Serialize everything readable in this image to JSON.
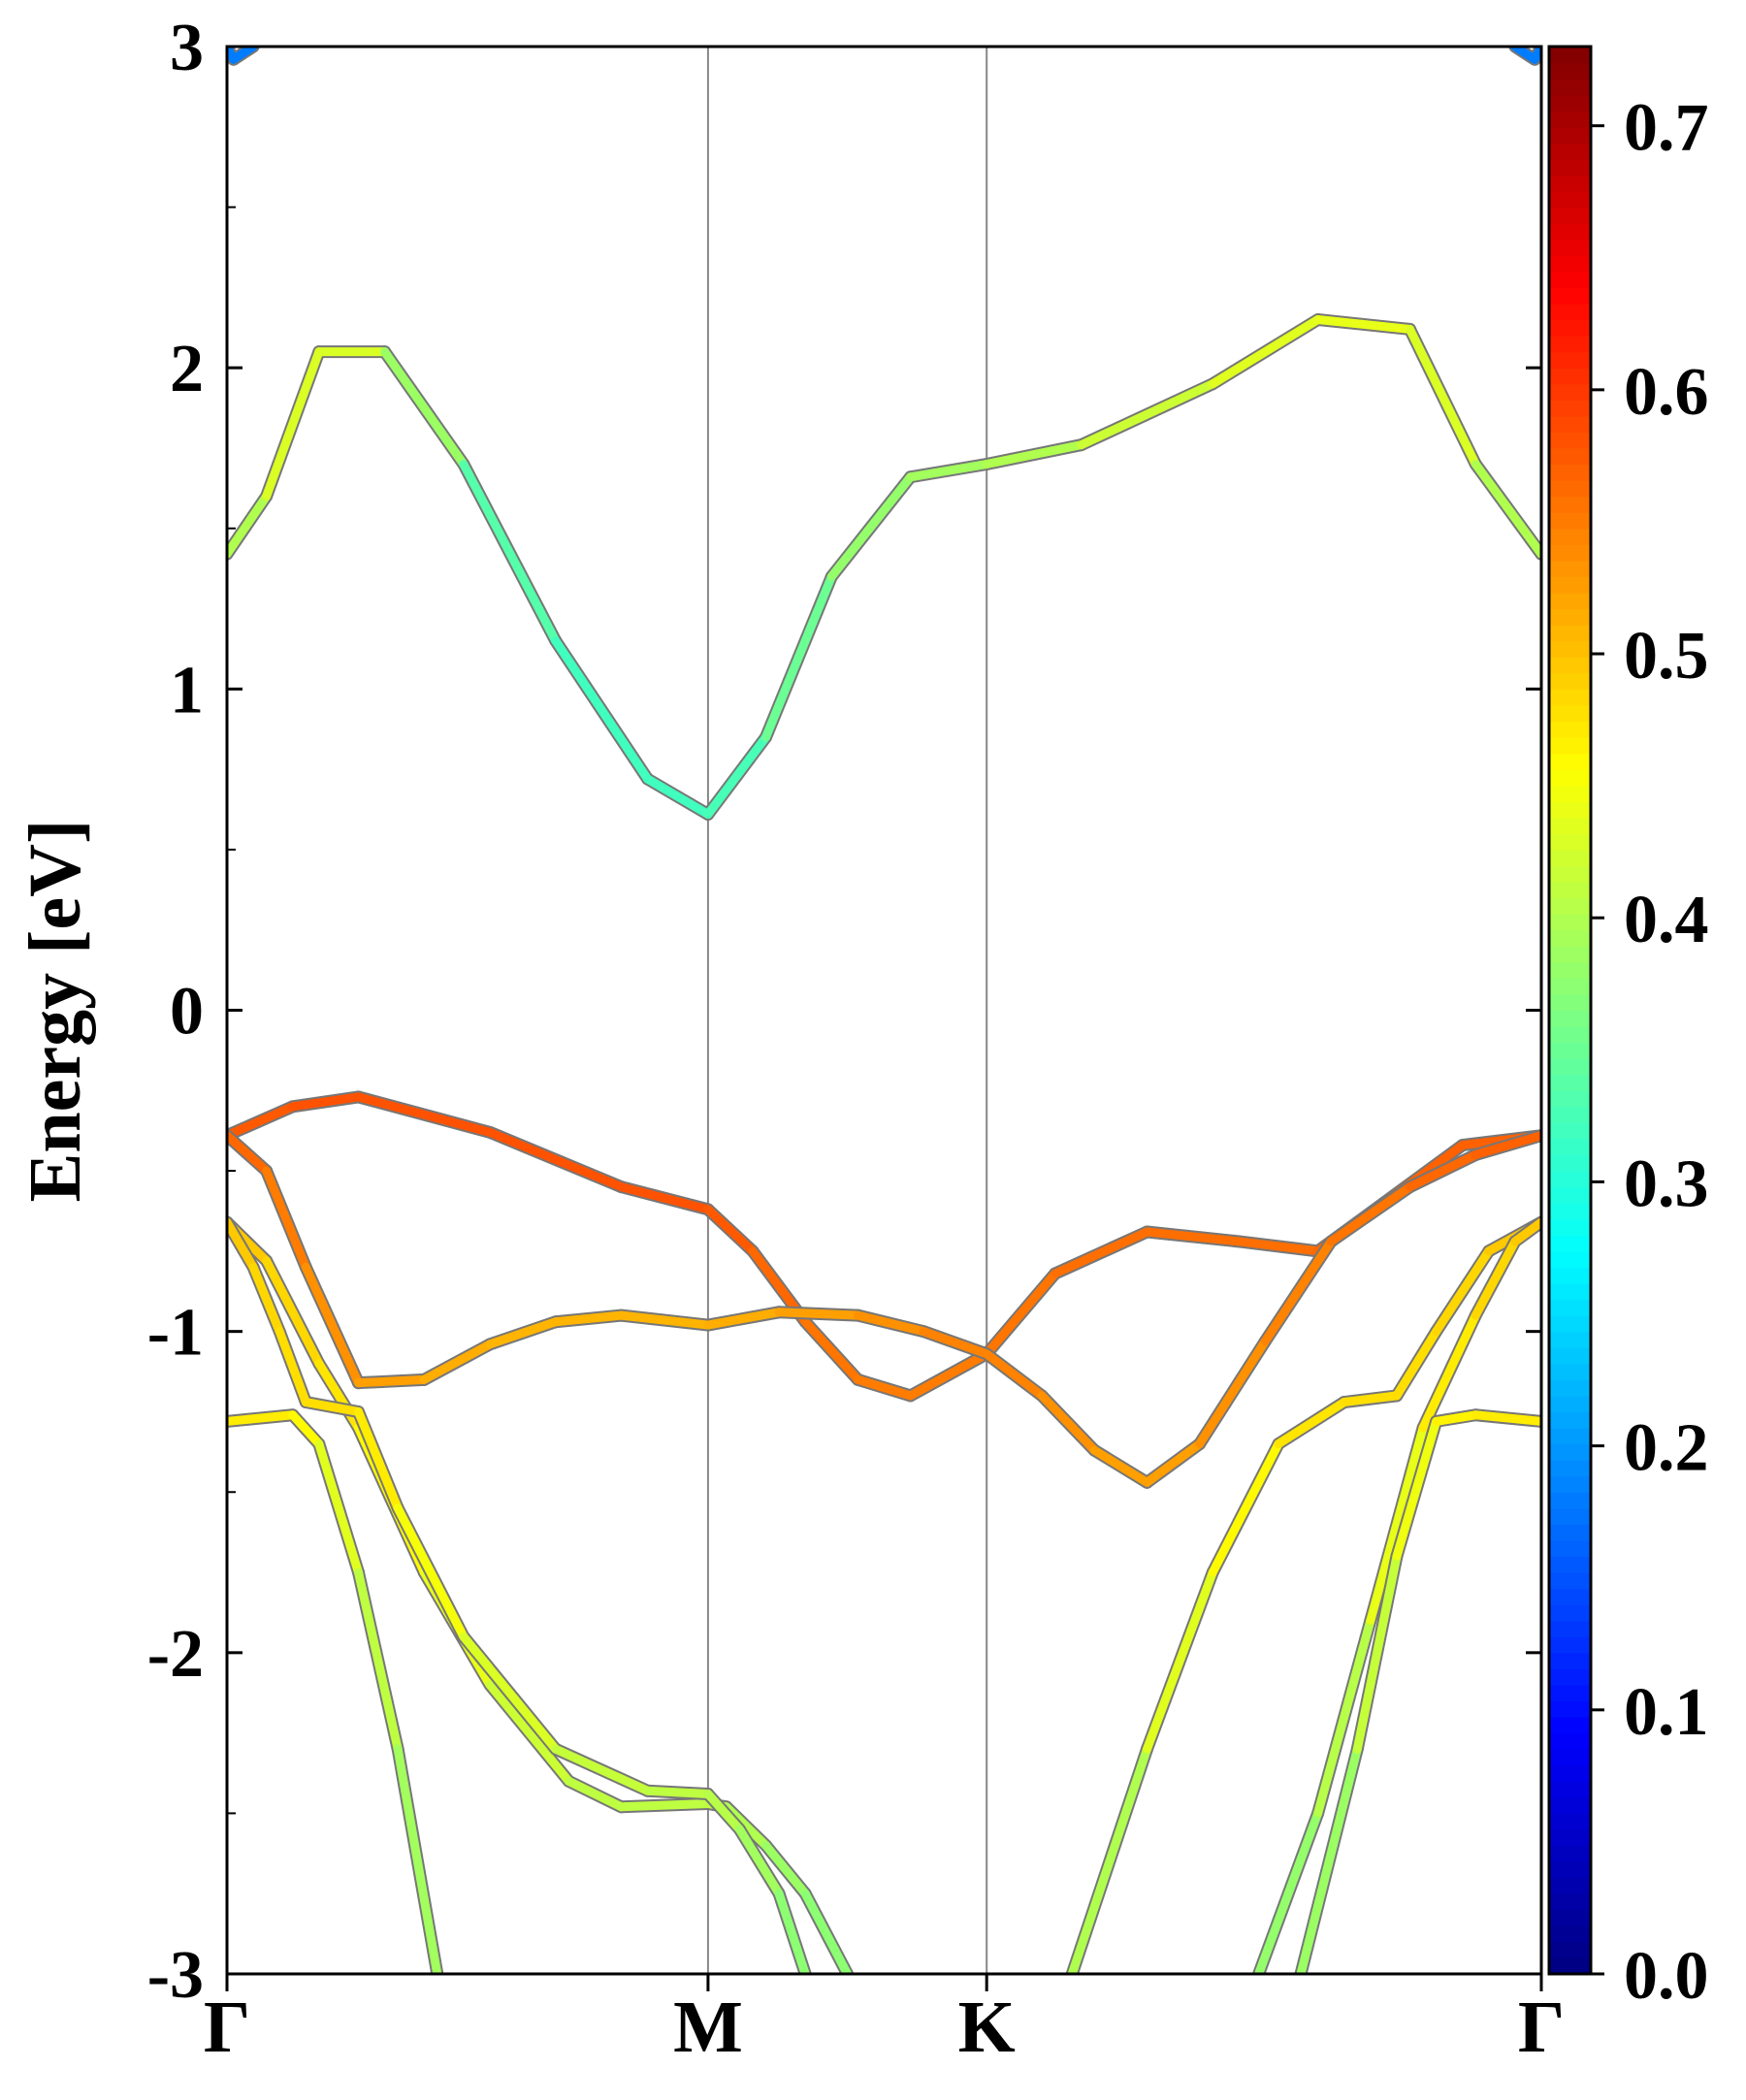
{
  "chart_data": {
    "type": "line",
    "ylabel": "Energy [eV]",
    "xlabel": "",
    "ylim": [
      -3,
      3
    ],
    "xlim": [
      0,
      1
    ],
    "x_ticks": [
      {
        "label": "Γ",
        "x": 0.0
      },
      {
        "label": "M",
        "x": 0.366
      },
      {
        "label": "K",
        "x": 0.578
      },
      {
        "label": "Γ",
        "x": 1.0
      }
    ],
    "y_ticks": [
      "3",
      "2",
      "1",
      "0",
      "-1",
      "-2",
      "-3"
    ],
    "y_tick_values": [
      3,
      2,
      1,
      0,
      -1,
      -2,
      -3
    ],
    "colorbar": {
      "range": [
        0.0,
        0.73
      ],
      "tick_labels": [
        "0.0",
        "0.1",
        "0.2",
        "0.3",
        "0.4",
        "0.5",
        "0.6",
        "0.7"
      ],
      "tick_values": [
        0.0,
        0.1,
        0.2,
        0.3,
        0.4,
        0.5,
        0.6,
        0.7
      ],
      "colormap": "jet"
    },
    "grid": false,
    "series": [
      {
        "values": [
          [
            0.0,
            1.42,
            0.38
          ],
          [
            0.03,
            1.6,
            0.42
          ],
          [
            0.07,
            2.05,
            0.44
          ],
          [
            0.12,
            2.05,
            0.42
          ],
          [
            0.18,
            1.7,
            0.35
          ],
          [
            0.25,
            1.15,
            0.32
          ],
          [
            0.32,
            0.72,
            0.32
          ],
          [
            0.366,
            0.61,
            0.32
          ],
          [
            0.41,
            0.85,
            0.33
          ],
          [
            0.46,
            1.35,
            0.37
          ],
          [
            0.52,
            1.66,
            0.39
          ],
          [
            0.578,
            1.7,
            0.39
          ],
          [
            0.65,
            1.76,
            0.41
          ],
          [
            0.75,
            1.95,
            0.43
          ],
          [
            0.83,
            2.15,
            0.44
          ],
          [
            0.9,
            2.12,
            0.44
          ],
          [
            0.95,
            1.7,
            0.42
          ],
          [
            1.0,
            1.42,
            0.38
          ]
        ]
      },
      {
        "values": [
          [
            0.0,
            -0.39,
            0.57
          ],
          [
            0.05,
            -0.3,
            0.58
          ],
          [
            0.1,
            -0.27,
            0.58
          ],
          [
            0.2,
            -0.38,
            0.58
          ],
          [
            0.3,
            -0.55,
            0.58
          ],
          [
            0.366,
            -0.62,
            0.58
          ],
          [
            0.4,
            -0.75,
            0.57
          ],
          [
            0.44,
            -0.97,
            0.56
          ],
          [
            0.48,
            -1.15,
            0.55
          ],
          [
            0.52,
            -1.2,
            0.55
          ],
          [
            0.578,
            -1.07,
            0.55
          ],
          [
            0.63,
            -0.82,
            0.56
          ],
          [
            0.7,
            -0.69,
            0.56
          ],
          [
            0.77,
            -0.72,
            0.56
          ],
          [
            0.83,
            -0.75,
            0.56
          ],
          [
            0.88,
            -0.6,
            0.57
          ],
          [
            0.94,
            -0.42,
            0.57
          ],
          [
            1.0,
            -0.39,
            0.57
          ]
        ]
      },
      {
        "values": [
          [
            0.0,
            -0.39,
            0.57
          ],
          [
            0.03,
            -0.5,
            0.56
          ],
          [
            0.06,
            -0.8,
            0.54
          ],
          [
            0.1,
            -1.16,
            0.53
          ],
          [
            0.15,
            -1.15,
            0.52
          ],
          [
            0.2,
            -1.04,
            0.51
          ],
          [
            0.25,
            -0.97,
            0.51
          ],
          [
            0.3,
            -0.95,
            0.51
          ],
          [
            0.366,
            -0.98,
            0.51
          ],
          [
            0.42,
            -0.94,
            0.52
          ],
          [
            0.48,
            -0.95,
            0.53
          ],
          [
            0.53,
            -1.0,
            0.54
          ],
          [
            0.578,
            -1.07,
            0.55
          ],
          [
            0.62,
            -1.2,
            0.54
          ],
          [
            0.66,
            -1.37,
            0.53
          ],
          [
            0.7,
            -1.47,
            0.52
          ],
          [
            0.74,
            -1.35,
            0.53
          ],
          [
            0.79,
            -1.03,
            0.54
          ],
          [
            0.84,
            -0.72,
            0.55
          ],
          [
            0.9,
            -0.55,
            0.56
          ],
          [
            0.95,
            -0.45,
            0.57
          ],
          [
            1.0,
            -0.39,
            0.57
          ]
        ]
      },
      {
        "values": [
          [
            0.0,
            -0.66,
            0.5
          ],
          [
            0.03,
            -0.78,
            0.49
          ],
          [
            0.07,
            -1.1,
            0.48
          ],
          [
            0.1,
            -1.3,
            0.47
          ],
          [
            0.15,
            -1.75,
            0.45
          ],
          [
            0.2,
            -2.1,
            0.43
          ],
          [
            0.26,
            -2.4,
            0.41
          ],
          [
            0.3,
            -2.48,
            0.41
          ],
          [
            0.366,
            -2.47,
            0.41
          ],
          [
            0.38,
            -2.48,
            0.41
          ],
          [
            0.41,
            -2.6,
            0.39
          ],
          [
            0.44,
            -2.75,
            0.38
          ],
          [
            0.472,
            -3.0,
            0.37
          ]
        ]
      },
      {
        "values": [
          [
            0.0,
            -0.66,
            0.5
          ],
          [
            0.02,
            -0.8,
            0.49
          ],
          [
            0.04,
            -1.0,
            0.48
          ],
          [
            0.06,
            -1.22,
            0.48
          ],
          [
            0.1,
            -1.25,
            0.48
          ],
          [
            0.13,
            -1.55,
            0.46
          ],
          [
            0.18,
            -1.95,
            0.44
          ],
          [
            0.25,
            -2.3,
            0.42
          ],
          [
            0.32,
            -2.43,
            0.41
          ],
          [
            0.366,
            -2.44,
            0.41
          ],
          [
            0.39,
            -2.55,
            0.4
          ],
          [
            0.42,
            -2.75,
            0.38
          ],
          [
            0.44,
            -3.0,
            0.37
          ]
        ]
      },
      {
        "values": [
          [
            0.0,
            -1.28,
            0.47
          ],
          [
            0.05,
            -1.26,
            0.47
          ],
          [
            0.07,
            -1.35,
            0.45
          ],
          [
            0.1,
            -1.75,
            0.42
          ],
          [
            0.13,
            -2.3,
            0.4
          ],
          [
            0.16,
            -3.0,
            0.38
          ]
        ]
      },
      {
        "values": [
          [
            0.643,
            -3.0,
            0.38
          ],
          [
            0.7,
            -2.3,
            0.42
          ],
          [
            0.75,
            -1.75,
            0.45
          ],
          [
            0.8,
            -1.35,
            0.47
          ],
          [
            0.85,
            -1.22,
            0.48
          ],
          [
            0.89,
            -1.2,
            0.48
          ],
          [
            0.92,
            -1.0,
            0.48
          ],
          [
            0.96,
            -0.75,
            0.49
          ],
          [
            1.0,
            -0.66,
            0.5
          ]
        ]
      },
      {
        "values": [
          [
            0.785,
            -3.0,
            0.37
          ],
          [
            0.83,
            -2.5,
            0.39
          ],
          [
            0.87,
            -1.9,
            0.42
          ],
          [
            0.91,
            -1.3,
            0.46
          ],
          [
            0.95,
            -0.95,
            0.48
          ],
          [
            0.98,
            -0.72,
            0.49
          ],
          [
            1.0,
            -0.66,
            0.5
          ]
        ]
      },
      {
        "values": [
          [
            0.817,
            -3.0,
            0.37
          ],
          [
            0.86,
            -2.3,
            0.4
          ],
          [
            0.89,
            -1.7,
            0.43
          ],
          [
            0.92,
            -1.28,
            0.46
          ],
          [
            0.95,
            -1.26,
            0.47
          ],
          [
            1.0,
            -1.28,
            0.47
          ]
        ]
      },
      {
        "values": [
          [
            0.0,
            3.0,
            0.18
          ],
          [
            0.005,
            2.96,
            0.18
          ],
          [
            0.02,
            3.0,
            0.18
          ]
        ]
      },
      {
        "values": [
          [
            0.98,
            3.0,
            0.18
          ],
          [
            0.995,
            2.96,
            0.18
          ],
          [
            1.0,
            3.0,
            0.18
          ]
        ]
      }
    ]
  }
}
